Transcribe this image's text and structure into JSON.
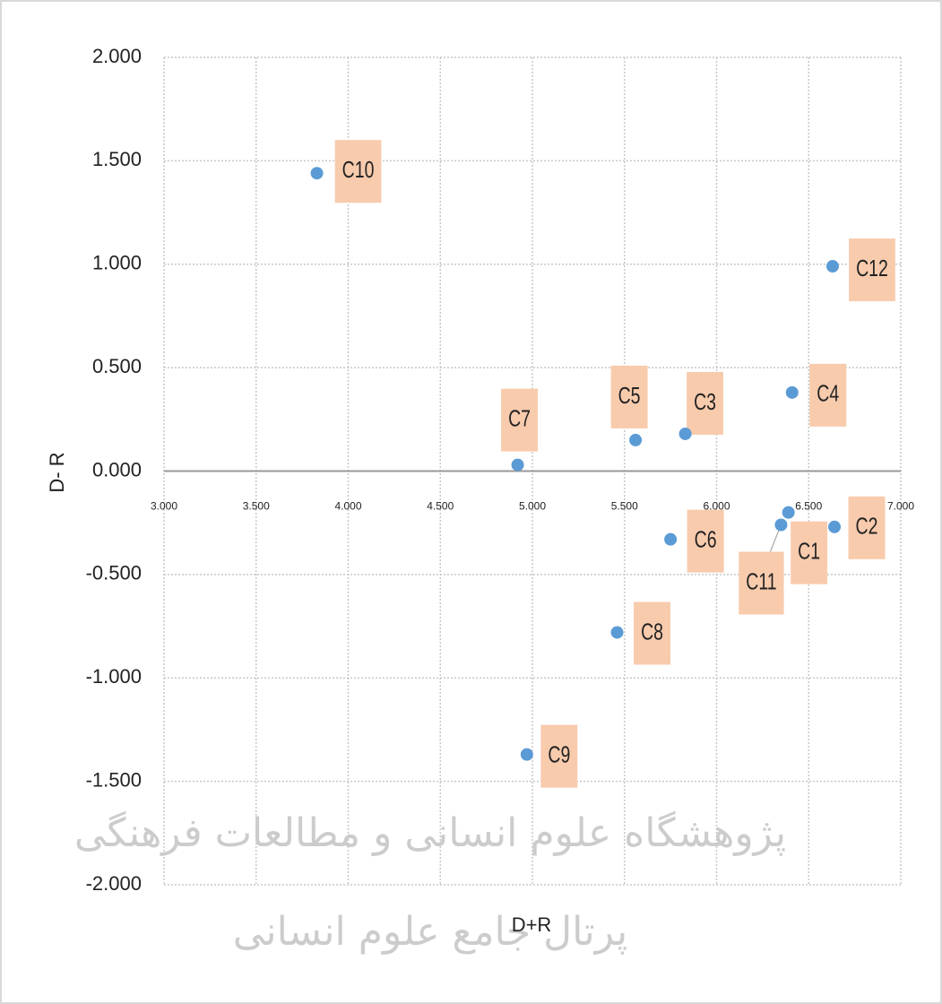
{
  "chart_data": {
    "type": "scatter",
    "x_label": "D+R",
    "y_label": "D- R",
    "watermark": [
      "پژوهشگاه علوم انسانی و مطالعات فرهنگی",
      "پرتال جامع علوم انسانی"
    ],
    "series": [
      {
        "color": "#5b9bd5",
        "labels": [
          "C10",
          "C12",
          "C4",
          "C3",
          "C5",
          "C7",
          "C6",
          "C1",
          "C11",
          "C2",
          "C8",
          "C9"
        ],
        "x": [
          3.83,
          6.63,
          6.41,
          5.83,
          5.56,
          4.92,
          5.75,
          6.39,
          6.35,
          6.64,
          5.46,
          4.97
        ],
        "values": [
          1.44,
          0.99,
          0.38,
          0.18,
          0.15,
          0.03,
          -0.33,
          -0.2,
          -0.26,
          -0.27,
          -0.78,
          -1.37
        ]
      }
    ],
    "label_color": "#f8cbad",
    "xlim": [
      3,
      7
    ],
    "xticks": [
      {
        "value": 3,
        "label": "3.000"
      },
      {
        "value": 3.5,
        "label": "3.500"
      },
      {
        "value": 4,
        "label": "4.000"
      },
      {
        "value": 4.5,
        "label": "4.500"
      },
      {
        "value": 5,
        "label": "5.000"
      },
      {
        "value": 5.5,
        "label": "5.500"
      },
      {
        "value": 6,
        "label": "6.000"
      },
      {
        "value": 6.5,
        "label": "6.500"
      },
      {
        "value": 7,
        "label": "7.000"
      }
    ],
    "ylim": [
      -2,
      2
    ],
    "yticks": [
      {
        "value": -2,
        "label": "-2.000"
      },
      {
        "value": -1.5,
        "label": "-1.500"
      },
      {
        "value": -1,
        "label": "-1.000"
      },
      {
        "value": -0.5,
        "label": "-0.500"
      },
      {
        "value": 0,
        "label": "0.000"
      },
      {
        "value": 0.5,
        "label": "0.500"
      },
      {
        "value": 1,
        "label": "1.000"
      },
      {
        "value": 1.5,
        "label": "1.500"
      },
      {
        "value": 2,
        "label": "2.000"
      }
    ],
    "grid": true
  }
}
